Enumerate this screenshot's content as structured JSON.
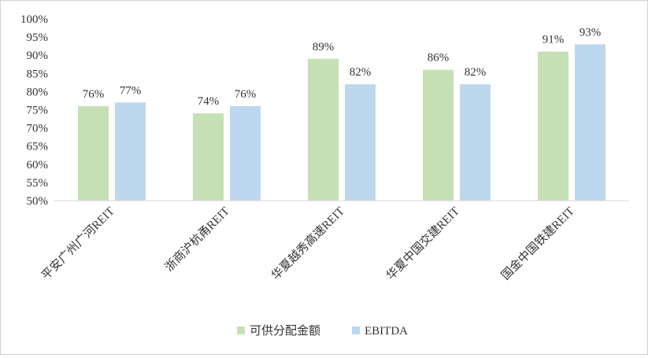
{
  "chart_data": {
    "type": "bar",
    "categories": [
      "平安广州广河REIT",
      "浙商沪杭甬REIT",
      "华夏越秀高速REIT",
      "华夏中国交建REIT",
      "国金中国铁建REIT"
    ],
    "series": [
      {
        "name": "可供分配金额",
        "values": [
          76,
          74,
          89,
          86,
          91
        ],
        "labels": [
          "76%",
          "74%",
          "89%",
          "86%",
          "91%"
        ],
        "color": "#c5e0b4"
      },
      {
        "name": "EBITDA",
        "values": [
          77,
          76,
          82,
          82,
          93
        ],
        "labels": [
          "77%",
          "76%",
          "82%",
          "82%",
          "93%"
        ],
        "color": "#bdd7ee"
      }
    ],
    "yticks": [
      "50%",
      "55%",
      "60%",
      "65%",
      "70%",
      "75%",
      "80%",
      "85%",
      "90%",
      "95%",
      "100%"
    ],
    "ylim": [
      50,
      100
    ],
    "ylabel": "",
    "xlabel": "",
    "title": "",
    "grid": false,
    "legend_position": "bottom",
    "axis_color": "#d9d9d9"
  }
}
